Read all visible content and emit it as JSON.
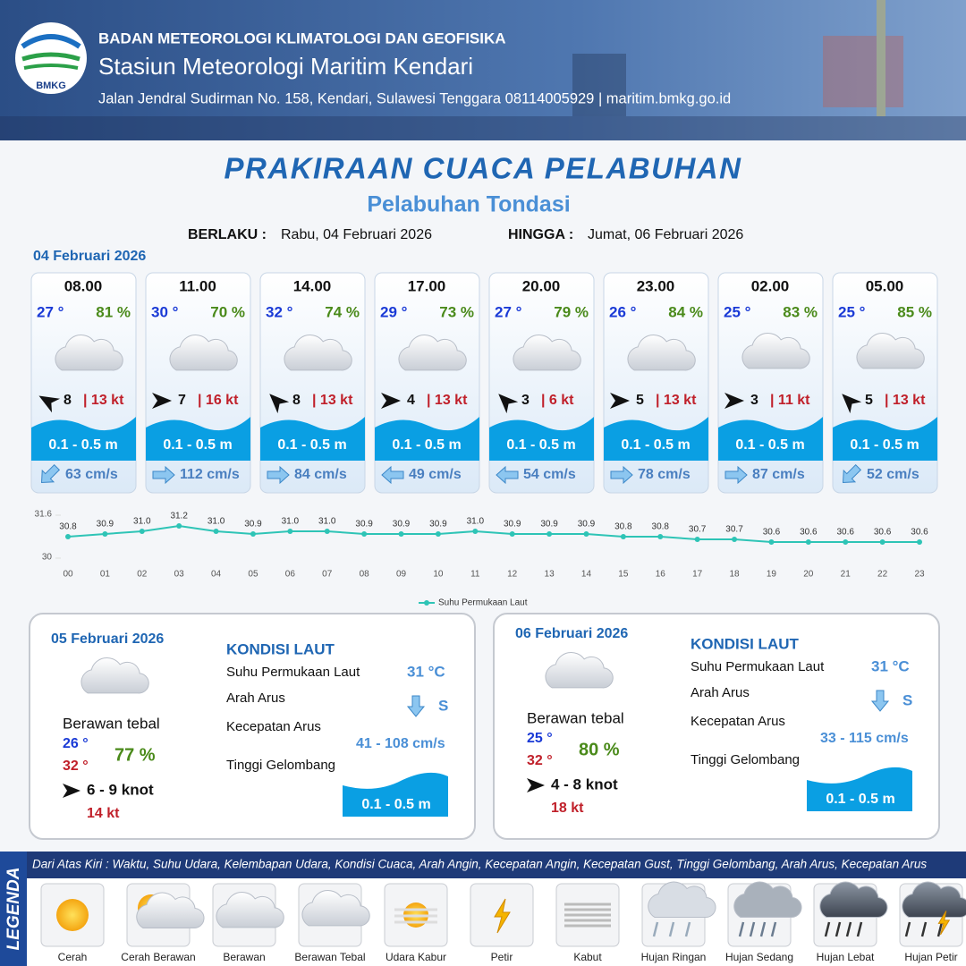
{
  "header": {
    "org": "BADAN METEOROLOGI KLIMATOLOGI DAN GEOFISIKA",
    "station": "Stasiun Meteorologi Maritim Kendari",
    "address": "Jalan Jendral Sudirman No. 158, Kendari, Sulawesi Tenggara  08114005929 | maritim.bmkg.go.id",
    "logo": "BMKG"
  },
  "title": "PRAKIRAAN CUACA PELABUHAN",
  "subtitle": "Pelabuhan Tondasi",
  "validity": {
    "from_label": "BERLAKU :",
    "from": "Rabu, 04 Februari 2026",
    "to_label": "HINGGA :",
    "to": "Jumat, 06 Februari 2026"
  },
  "day1": {
    "date": "04 Februari 2026",
    "forecasts": [
      {
        "time": "08.00",
        "temp": "27 °",
        "rh": "81 %",
        "wind": "8",
        "gust": "| 13 kt",
        "wave": "0.1 - 0.5 m",
        "current": "63 cm/s"
      },
      {
        "time": "11.00",
        "temp": "30 °",
        "rh": "70 %",
        "wind": "7",
        "gust": "| 16 kt",
        "wave": "0.1 - 0.5 m",
        "current": "112 cm/s"
      },
      {
        "time": "14.00",
        "temp": "32 °",
        "rh": "74 %",
        "wind": "8",
        "gust": "| 13 kt",
        "wave": "0.1 - 0.5 m",
        "current": "84 cm/s"
      },
      {
        "time": "17.00",
        "temp": "29 °",
        "rh": "73 %",
        "wind": "4",
        "gust": "| 13 kt",
        "wave": "0.1 - 0.5 m",
        "current": "49 cm/s"
      },
      {
        "time": "20.00",
        "temp": "27 °",
        "rh": "79 %",
        "wind": "3",
        "gust": "| 6 kt",
        "wave": "0.1 - 0.5 m",
        "current": "54 cm/s"
      },
      {
        "time": "23.00",
        "temp": "26 °",
        "rh": "84 %",
        "wind": "5",
        "gust": "| 13 kt",
        "wave": "0.1 - 0.5 m",
        "current": "78 cm/s"
      },
      {
        "time": "02.00",
        "temp": "25 °",
        "rh": "83 %",
        "wind": "3",
        "gust": "| 11 kt",
        "wave": "0.1 - 0.5 m",
        "current": "87 cm/s"
      },
      {
        "time": "05.00",
        "temp": "25 °",
        "rh": "85 %",
        "wind": "5",
        "gust": "| 13 kt",
        "wave": "0.1 - 0.5 m",
        "current": "52 cm/s"
      }
    ]
  },
  "chart_data": {
    "type": "line",
    "categories": [
      "00",
      "01",
      "02",
      "03",
      "04",
      "05",
      "06",
      "07",
      "08",
      "09",
      "10",
      "11",
      "12",
      "13",
      "14",
      "15",
      "16",
      "17",
      "18",
      "19",
      "20",
      "21",
      "22",
      "23"
    ],
    "series": [
      {
        "name": "Suhu Permukaan Laut",
        "color": "#2ec4b6",
        "values": [
          30.8,
          30.9,
          31.0,
          31.2,
          31.0,
          30.9,
          31.0,
          31.0,
          30.9,
          30.9,
          30.9,
          31.0,
          30.9,
          30.9,
          30.9,
          30.8,
          30.8,
          30.7,
          30.7,
          30.6,
          30.6,
          30.6,
          30.6,
          30.6
        ],
        "value_labels": [
          "30.8",
          "30.9",
          "31.0",
          "31.2",
          "31.0",
          "30.9",
          "31.0",
          "31.0",
          "30.9",
          "30.9",
          "30.9",
          "31.0",
          "30.9",
          "30.9",
          "30.9",
          "30.8",
          "30.8",
          "30.7",
          "30.7",
          "30.6",
          "30.6",
          "30.6",
          "30.6",
          "30.6"
        ]
      }
    ],
    "ylim": [
      30,
      31.6
    ],
    "yticks": [
      30,
      31.6
    ],
    "legend": "bottom"
  },
  "days": [
    {
      "date": "05 Februari 2026",
      "weather": "Berawan tebal",
      "tmin": "26 °",
      "tmax": "32 °",
      "rh": "77 %",
      "wind": "6  - 9 knot",
      "gust": "14 kt",
      "sea_title": "KONDISI LAUT",
      "sst_label": "Suhu Permukaan Laut",
      "sst": "31 °C",
      "dir_label": "Arah Arus",
      "dir": "S",
      "speed_label": "Kecepatan Arus",
      "speed": "41 - 108 cm/s",
      "wave_label": "Tinggi Gelombang",
      "wave": "0.1 - 0.5 m"
    },
    {
      "date": "06 Februari 2026",
      "weather": "Berawan tebal",
      "tmin": "25 °",
      "tmax": "32 °",
      "rh": "80 %",
      "wind": "4 - 8 knot",
      "gust": "18 kt",
      "sea_title": "KONDISI LAUT",
      "sst_label": "Suhu Permukaan Laut",
      "sst": "31 °C",
      "dir_label": "Arah Arus",
      "dir": "S",
      "speed_label": "Kecepatan Arus",
      "speed": "33 - 115 cm/s",
      "wave_label": "Tinggi Gelombang",
      "wave": "0.1 - 0.5 m"
    }
  ],
  "legend": {
    "title": "LEGENDA",
    "description": "Dari Atas Kiri : Waktu, Suhu Udara, Kelembapan Udara, Kondisi Cuaca, Arah Angin, Kecepatan Angin, Kecepatan Gust, Tinggi Gelombang, Arah Arus, Kecepatan Arus",
    "items": [
      "Cerah",
      "Cerah Berawan",
      "Berawan",
      "Berawan Tebal",
      "Udara Kabur",
      "Petir",
      "Kabut",
      "Hujan Ringan",
      "Hujan Sedang",
      "Hujan Lebat",
      "Hujan Petir"
    ]
  }
}
